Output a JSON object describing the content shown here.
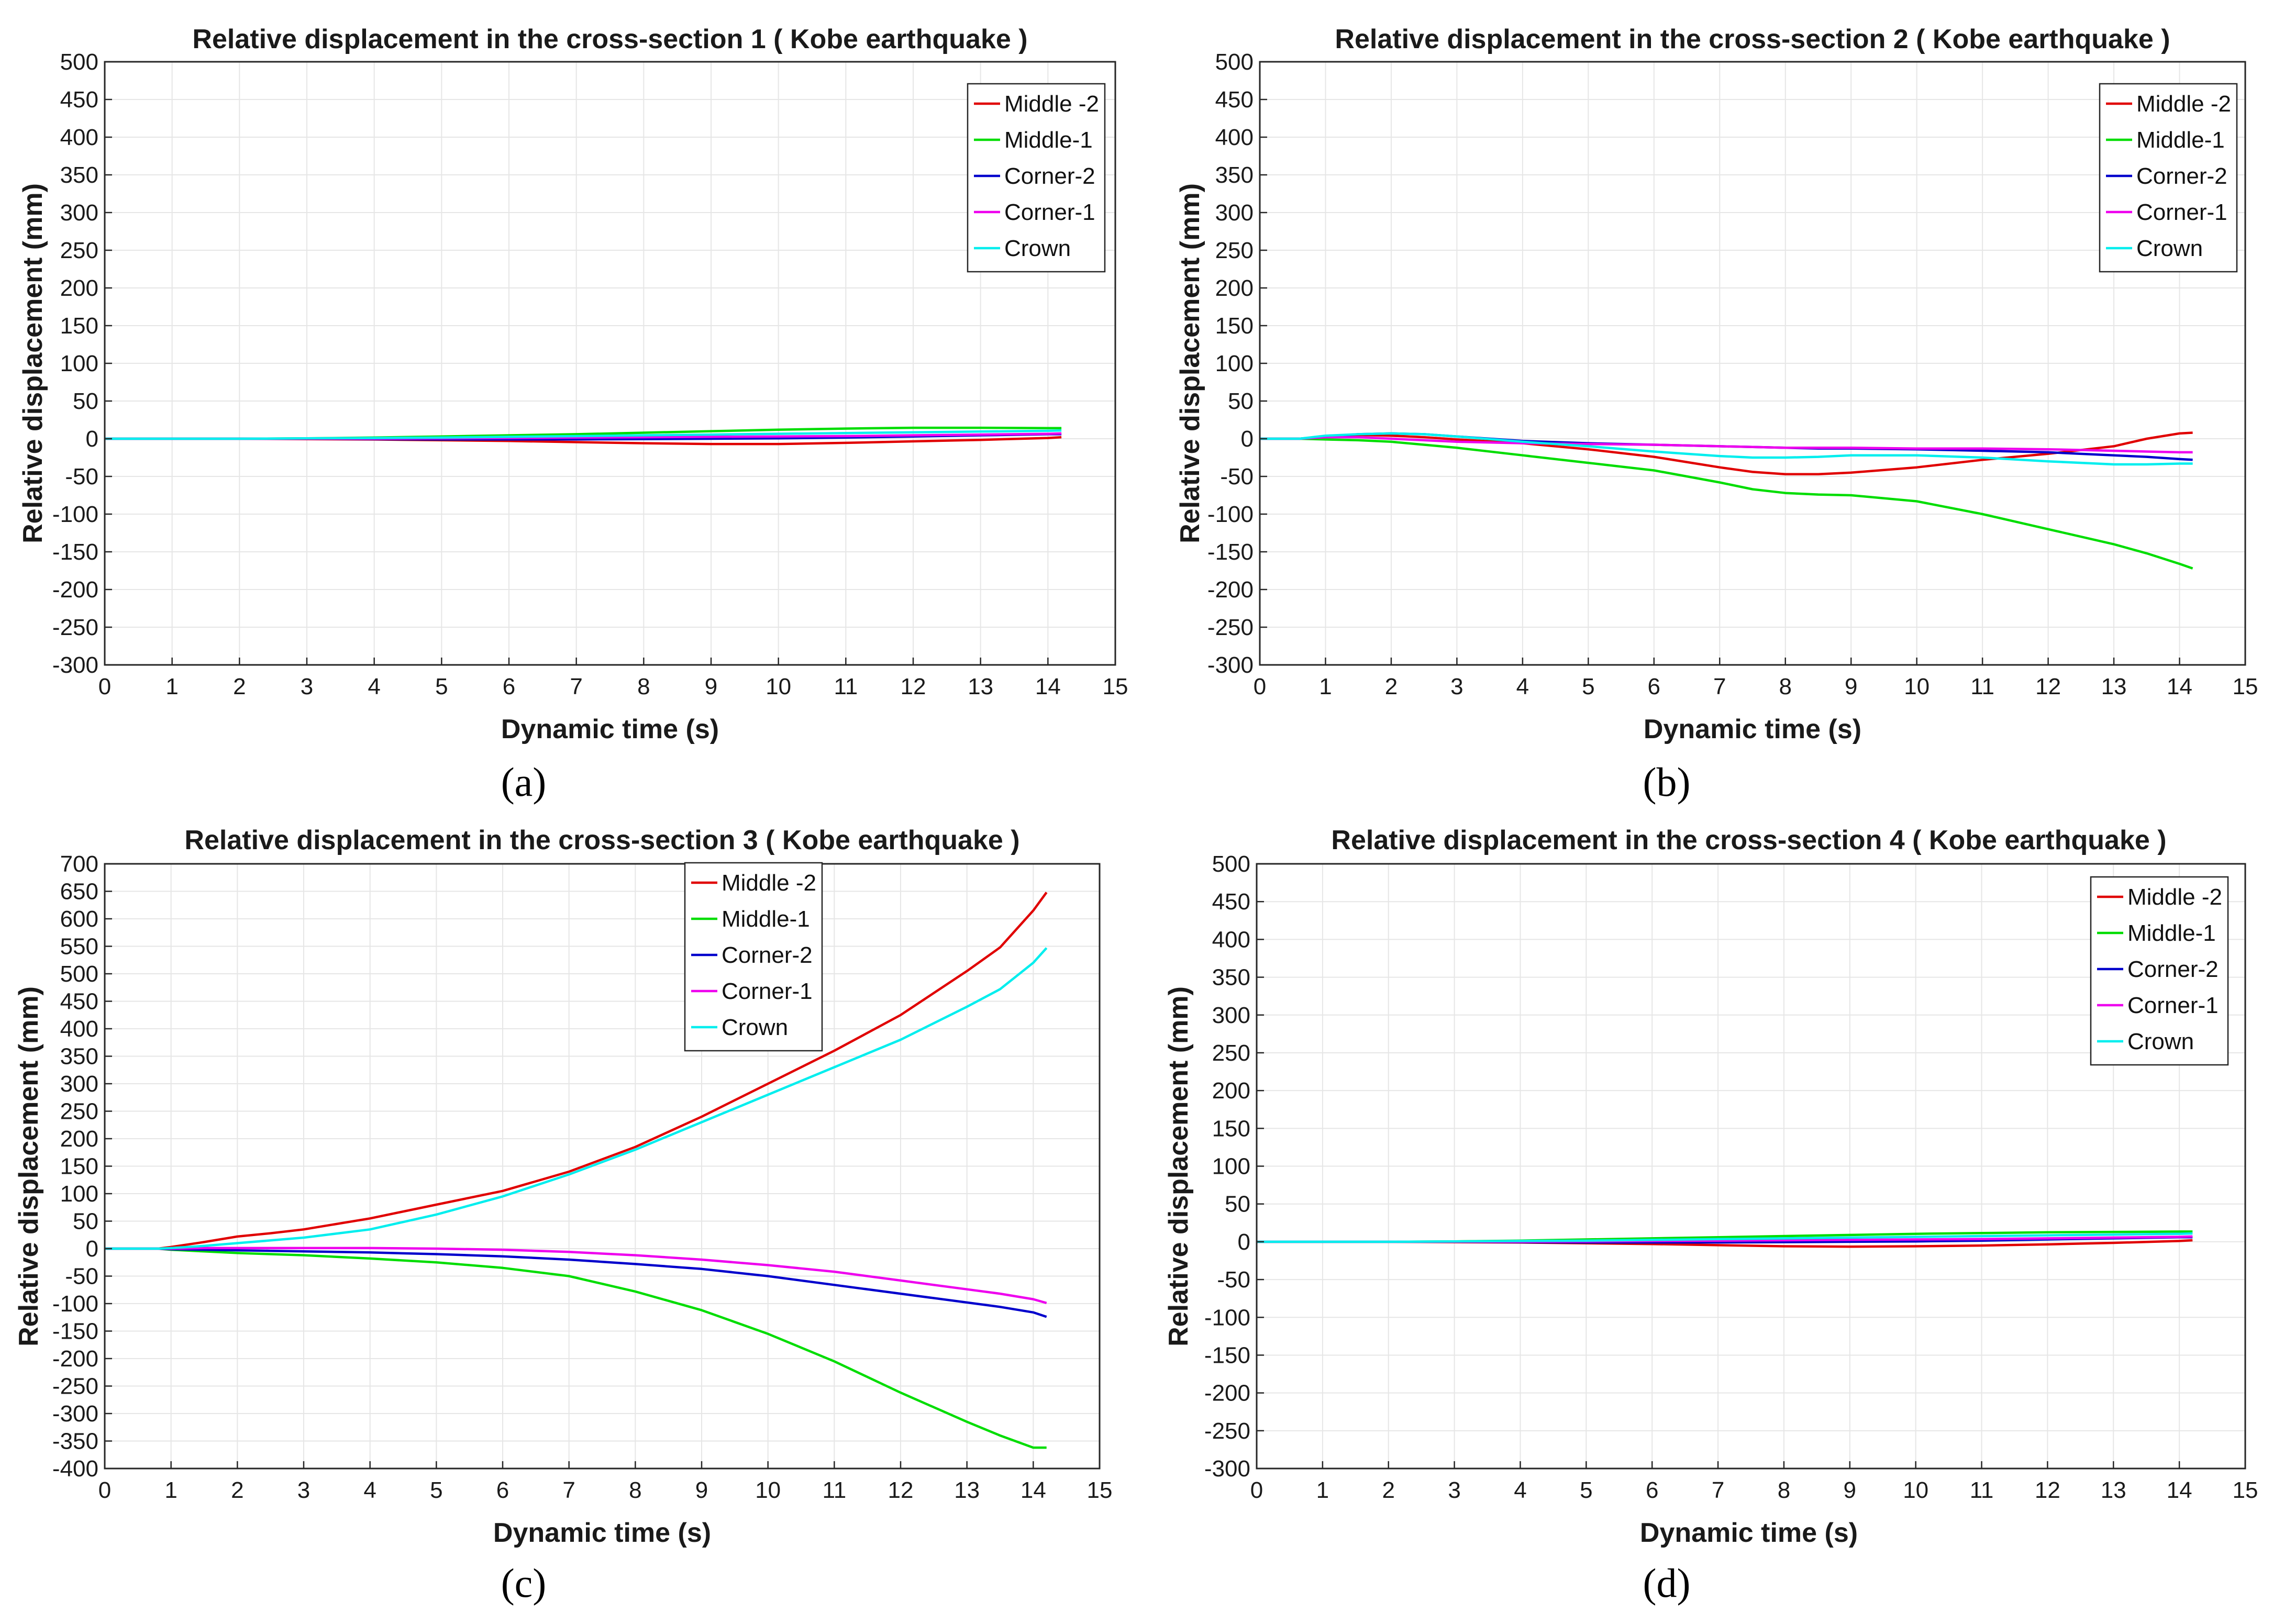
{
  "figure": {
    "captions": [
      "(a)",
      "(b)",
      "(c)",
      "(d)"
    ]
  },
  "chart_data": [
    {
      "type": "line",
      "title": "Relative displacement in the cross-section 1 ( Kobe earthquake )",
      "xlabel": "Dynamic time (s)",
      "ylabel": "Relative displacement (mm)",
      "xlim": [
        0,
        15
      ],
      "ylim": [
        -300,
        500
      ],
      "xticks": [
        0,
        1,
        2,
        3,
        4,
        5,
        6,
        7,
        8,
        9,
        10,
        11,
        12,
        13,
        14,
        15
      ],
      "yticks": [
        500,
        450,
        400,
        350,
        300,
        250,
        200,
        150,
        100,
        50,
        0,
        -50,
        -100,
        -150,
        -200,
        -250,
        -300
      ],
      "grid": true,
      "legend_position": "top-right",
      "x": [
        0,
        1,
        2,
        3,
        4,
        5,
        6,
        7,
        8,
        9,
        10,
        11,
        12,
        13,
        14,
        14.2
      ],
      "series": [
        {
          "name": "Middle -2",
          "color": "#e00000",
          "values": [
            0,
            0,
            0,
            -0.5,
            -1,
            -2,
            -3,
            -4.5,
            -6,
            -7,
            -7,
            -5.5,
            -3.5,
            -1.5,
            1,
            2
          ]
        },
        {
          "name": "Middle-1",
          "color": "#00dd00",
          "values": [
            0,
            0,
            0,
            0.5,
            1.5,
            3,
            4.5,
            6,
            8,
            10,
            12,
            13.5,
            14.5,
            14.5,
            14,
            14
          ]
        },
        {
          "name": "Corner-2",
          "color": "#0000cc",
          "values": [
            0,
            0,
            0,
            0,
            -0.5,
            -1,
            -1,
            -1,
            -0.5,
            0,
            0.5,
            1.5,
            3,
            4.5,
            6,
            6
          ]
        },
        {
          "name": "Corner-1",
          "color": "#ee00ee",
          "values": [
            0,
            0,
            0,
            0,
            0,
            0.5,
            1,
            1.5,
            2,
            2.5,
            3,
            3.5,
            4.5,
            5.5,
            6.5,
            7
          ]
        },
        {
          "name": "Crown",
          "color": "#00eeee",
          "values": [
            0,
            0,
            0,
            0.5,
            1,
            1.5,
            2.5,
            3.5,
            4.5,
            5.5,
            6.5,
            7.5,
            8.5,
            9.5,
            10.5,
            11
          ]
        }
      ]
    },
    {
      "type": "line",
      "title": "Relative displacement in the cross-section 2 ( Kobe earthquake )",
      "xlabel": "Dynamic time (s)",
      "ylabel": "Relative displacement (mm)",
      "xlim": [
        0,
        15
      ],
      "ylim": [
        -300,
        500
      ],
      "xticks": [
        0,
        1,
        2,
        3,
        4,
        5,
        6,
        7,
        8,
        9,
        10,
        11,
        12,
        13,
        14,
        15
      ],
      "yticks": [
        500,
        450,
        400,
        350,
        300,
        250,
        200,
        150,
        100,
        50,
        0,
        -50,
        -100,
        -150,
        -200,
        -250,
        -300
      ],
      "grid": true,
      "legend_position": "top-right",
      "x": [
        0,
        0.6,
        1,
        1.5,
        2,
        2.5,
        3,
        4,
        5,
        6,
        7,
        7.5,
        8,
        8.5,
        9,
        10,
        11,
        12,
        13,
        13.5,
        14,
        14.2
      ],
      "series": [
        {
          "name": "Middle -2",
          "color": "#e00000",
          "values": [
            0,
            0,
            3,
            5,
            4,
            2,
            -1,
            -6,
            -14,
            -24,
            -38,
            -44,
            -47,
            -47,
            -45,
            -38,
            -28,
            -20,
            -10,
            0,
            7,
            8
          ]
        },
        {
          "name": "Middle-1",
          "color": "#00dd00",
          "values": [
            0,
            0,
            -1,
            -2,
            -4,
            -8,
            -12,
            -22,
            -32,
            -42,
            -58,
            -67,
            -72,
            -74,
            -75,
            -83,
            -100,
            -120,
            -140,
            -152,
            -166,
            -172
          ]
        },
        {
          "name": "Corner-2",
          "color": "#0000cc",
          "values": [
            0,
            0,
            3,
            6,
            7,
            6,
            3,
            -3,
            -6,
            -8,
            -10,
            -11,
            -12,
            -13,
            -13,
            -14,
            -16,
            -18,
            -22,
            -24,
            -27,
            -28
          ]
        },
        {
          "name": "Corner-1",
          "color": "#ee00ee",
          "values": [
            0,
            0,
            2,
            2,
            0,
            -2,
            -4,
            -6,
            -7,
            -8,
            -10,
            -11,
            -12,
            -12,
            -12,
            -13,
            -13,
            -14,
            -16,
            -17,
            -18,
            -18
          ]
        },
        {
          "name": "Crown",
          "color": "#00eeee",
          "values": [
            0,
            0,
            4,
            6,
            7,
            6,
            3,
            -4,
            -10,
            -17,
            -23,
            -25,
            -25,
            -24,
            -22,
            -22,
            -25,
            -30,
            -34,
            -34,
            -33,
            -33
          ]
        }
      ]
    },
    {
      "type": "line",
      "title": "Relative displacement in the cross-section 3 ( Kobe earthquake )",
      "xlabel": "Dynamic time (s)",
      "ylabel": "Relative displacement (mm)",
      "xlim": [
        0,
        15
      ],
      "ylim": [
        -400,
        700
      ],
      "xticks": [
        0,
        1,
        2,
        3,
        4,
        5,
        6,
        7,
        8,
        9,
        10,
        11,
        12,
        13,
        14,
        15
      ],
      "yticks": [
        700,
        650,
        600,
        550,
        500,
        450,
        400,
        350,
        300,
        250,
        200,
        150,
        100,
        50,
        0,
        -50,
        -100,
        -150,
        -200,
        -250,
        -300,
        -350,
        -400
      ],
      "grid": true,
      "legend_position": "top-right",
      "x": [
        0,
        0.8,
        1,
        1.5,
        2,
        2.5,
        3,
        4,
        5,
        6,
        7,
        8,
        9,
        10,
        11,
        12,
        13,
        13.5,
        14,
        14.2
      ],
      "series": [
        {
          "name": "Middle -2",
          "color": "#e00000",
          "values": [
            0,
            0,
            3,
            12,
            22,
            28,
            35,
            55,
            80,
            105,
            140,
            185,
            240,
            300,
            360,
            425,
            505,
            548,
            615,
            648
          ]
        },
        {
          "name": "Middle-1",
          "color": "#00dd00",
          "values": [
            0,
            0,
            -2,
            -5,
            -8,
            -10,
            -12,
            -18,
            -25,
            -35,
            -50,
            -78,
            -112,
            -155,
            -205,
            -262,
            -315,
            -340,
            -362,
            -362
          ]
        },
        {
          "name": "Corner-2",
          "color": "#0000cc",
          "values": [
            0,
            0,
            -1,
            -2,
            -3,
            -4,
            -5,
            -7,
            -10,
            -14,
            -20,
            -28,
            -37,
            -50,
            -66,
            -82,
            -98,
            -106,
            -116,
            -124
          ]
        },
        {
          "name": "Corner-1",
          "color": "#ee00ee",
          "values": [
            0,
            0,
            0,
            1,
            1,
            1,
            1,
            1,
            0,
            -2,
            -6,
            -12,
            -20,
            -30,
            -42,
            -58,
            -74,
            -82,
            -92,
            -99
          ]
        },
        {
          "name": "Crown",
          "color": "#00eeee",
          "values": [
            0,
            0,
            1,
            5,
            10,
            15,
            20,
            35,
            62,
            95,
            135,
            180,
            230,
            280,
            330,
            380,
            440,
            472,
            520,
            547
          ]
        }
      ]
    },
    {
      "type": "line",
      "title": "Relative displacement in the cross-section 4 ( Kobe earthquake )",
      "xlabel": "Dynamic time (s)",
      "ylabel": "Relative displacement (mm)",
      "xlim": [
        0,
        15
      ],
      "ylim": [
        -300,
        500
      ],
      "xticks": [
        0,
        1,
        2,
        3,
        4,
        5,
        6,
        7,
        8,
        9,
        10,
        11,
        12,
        13,
        14,
        15
      ],
      "yticks": [
        500,
        450,
        400,
        350,
        300,
        250,
        200,
        150,
        100,
        50,
        0,
        -50,
        -100,
        -150,
        -200,
        -250,
        -300
      ],
      "grid": true,
      "legend_position": "top-right",
      "x": [
        0,
        1,
        2,
        3,
        4,
        5,
        6,
        7,
        8,
        9,
        10,
        11,
        12,
        13,
        14,
        14.2
      ],
      "series": [
        {
          "name": "Middle -2",
          "color": "#e00000",
          "values": [
            0,
            0,
            0,
            -0.5,
            -1,
            -2,
            -3,
            -4.5,
            -6,
            -6.5,
            -6,
            -5,
            -3.5,
            -1.5,
            1,
            2
          ]
        },
        {
          "name": "Middle-1",
          "color": "#00dd00",
          "values": [
            0,
            0,
            0,
            0.5,
            1.5,
            3,
            4.5,
            6,
            7.5,
            9,
            10.5,
            11.5,
            12.5,
            13,
            13.5,
            13.5
          ]
        },
        {
          "name": "Corner-2",
          "color": "#0000cc",
          "values": [
            0,
            0,
            0,
            0,
            -0.5,
            -1,
            -1,
            -1,
            -0.5,
            0,
            0.5,
            1.5,
            3,
            4.5,
            6,
            6
          ]
        },
        {
          "name": "Corner-1",
          "color": "#ee00ee",
          "values": [
            0,
            0,
            0,
            0,
            0,
            0.5,
            1,
            1.5,
            2,
            2.5,
            3,
            3.5,
            4.5,
            5.5,
            6.5,
            7
          ]
        },
        {
          "name": "Crown",
          "color": "#00eeee",
          "values": [
            0,
            0,
            0,
            0.5,
            1,
            1.5,
            2.5,
            3.5,
            4.5,
            5.5,
            6.5,
            7.5,
            8.5,
            9.5,
            10.5,
            11
          ]
        }
      ]
    }
  ]
}
